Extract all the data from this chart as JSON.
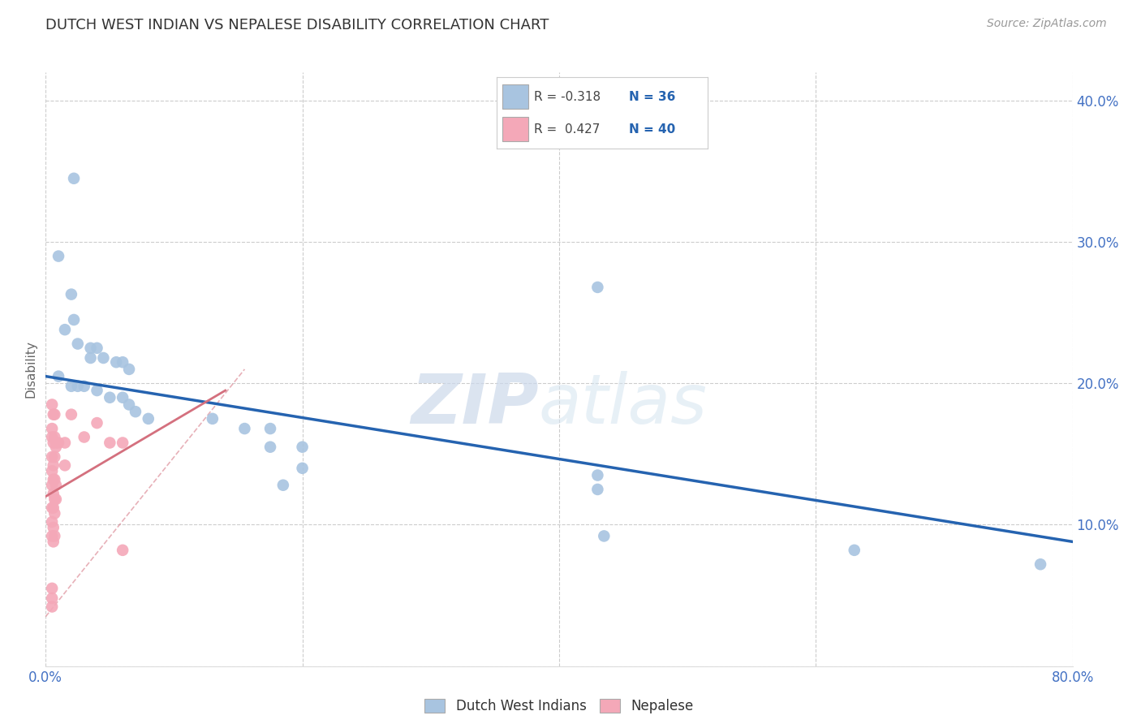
{
  "title": "DUTCH WEST INDIAN VS NEPALESE DISABILITY CORRELATION CHART",
  "source": "Source: ZipAtlas.com",
  "ylabel": "Disability",
  "xlim": [
    0.0,
    0.8
  ],
  "ylim": [
    0.0,
    0.42
  ],
  "xticks": [
    0.0,
    0.2,
    0.4,
    0.6,
    0.8
  ],
  "xticklabels": [
    "0.0%",
    "",
    "",
    "",
    "80.0%"
  ],
  "yticks": [
    0.0,
    0.1,
    0.2,
    0.3,
    0.4
  ],
  "yticklabels": [
    "",
    "10.0%",
    "20.0%",
    "30.0%",
    "40.0%"
  ],
  "blue_label": "Dutch West Indians",
  "pink_label": "Nepalese",
  "blue_R": "-0.318",
  "blue_N": "36",
  "pink_R": "0.427",
  "pink_N": "40",
  "blue_color": "#a8c4e0",
  "pink_color": "#f4a8b8",
  "blue_line_color": "#2563b0",
  "pink_line_color": "#d4707e",
  "blue_trendline": [
    0.0,
    0.205,
    0.8,
    0.088
  ],
  "pink_trendline_solid": [
    0.0,
    0.12,
    0.14,
    0.195
  ],
  "pink_trendline_dashed": [
    0.0,
    0.035,
    0.155,
    0.21
  ],
  "blue_dots": [
    [
      0.022,
      0.345
    ],
    [
      0.01,
      0.29
    ],
    [
      0.02,
      0.263
    ],
    [
      0.022,
      0.245
    ],
    [
      0.015,
      0.238
    ],
    [
      0.025,
      0.228
    ],
    [
      0.035,
      0.225
    ],
    [
      0.035,
      0.218
    ],
    [
      0.04,
      0.225
    ],
    [
      0.045,
      0.218
    ],
    [
      0.055,
      0.215
    ],
    [
      0.06,
      0.215
    ],
    [
      0.065,
      0.21
    ],
    [
      0.01,
      0.205
    ],
    [
      0.02,
      0.198
    ],
    [
      0.025,
      0.198
    ],
    [
      0.03,
      0.198
    ],
    [
      0.04,
      0.195
    ],
    [
      0.05,
      0.19
    ],
    [
      0.06,
      0.19
    ],
    [
      0.065,
      0.185
    ],
    [
      0.07,
      0.18
    ],
    [
      0.08,
      0.175
    ],
    [
      0.13,
      0.175
    ],
    [
      0.155,
      0.168
    ],
    [
      0.175,
      0.168
    ],
    [
      0.175,
      0.155
    ],
    [
      0.2,
      0.155
    ],
    [
      0.2,
      0.14
    ],
    [
      0.185,
      0.128
    ],
    [
      0.43,
      0.268
    ],
    [
      0.43,
      0.135
    ],
    [
      0.43,
      0.125
    ],
    [
      0.435,
      0.092
    ],
    [
      0.63,
      0.082
    ],
    [
      0.775,
      0.072
    ]
  ],
  "pink_dots": [
    [
      0.005,
      0.185
    ],
    [
      0.006,
      0.178
    ],
    [
      0.005,
      0.168
    ],
    [
      0.007,
      0.178
    ],
    [
      0.005,
      0.162
    ],
    [
      0.006,
      0.158
    ],
    [
      0.007,
      0.162
    ],
    [
      0.008,
      0.155
    ],
    [
      0.005,
      0.148
    ],
    [
      0.006,
      0.142
    ],
    [
      0.007,
      0.148
    ],
    [
      0.008,
      0.158
    ],
    [
      0.005,
      0.138
    ],
    [
      0.006,
      0.132
    ],
    [
      0.007,
      0.132
    ],
    [
      0.008,
      0.128
    ],
    [
      0.005,
      0.128
    ],
    [
      0.006,
      0.122
    ],
    [
      0.007,
      0.118
    ],
    [
      0.008,
      0.118
    ],
    [
      0.005,
      0.112
    ],
    [
      0.006,
      0.112
    ],
    [
      0.007,
      0.108
    ],
    [
      0.005,
      0.102
    ],
    [
      0.006,
      0.098
    ],
    [
      0.005,
      0.092
    ],
    [
      0.006,
      0.088
    ],
    [
      0.007,
      0.092
    ],
    [
      0.01,
      0.158
    ],
    [
      0.015,
      0.158
    ],
    [
      0.015,
      0.142
    ],
    [
      0.02,
      0.178
    ],
    [
      0.03,
      0.162
    ],
    [
      0.04,
      0.172
    ],
    [
      0.05,
      0.158
    ],
    [
      0.06,
      0.158
    ],
    [
      0.06,
      0.082
    ],
    [
      0.005,
      0.055
    ],
    [
      0.005,
      0.048
    ],
    [
      0.005,
      0.042
    ]
  ],
  "watermark_zip": "ZIP",
  "watermark_atlas": "atlas",
  "background_color": "#ffffff",
  "grid_color": "#cccccc",
  "title_fontsize": 13,
  "tick_label_color": "#4472c4"
}
